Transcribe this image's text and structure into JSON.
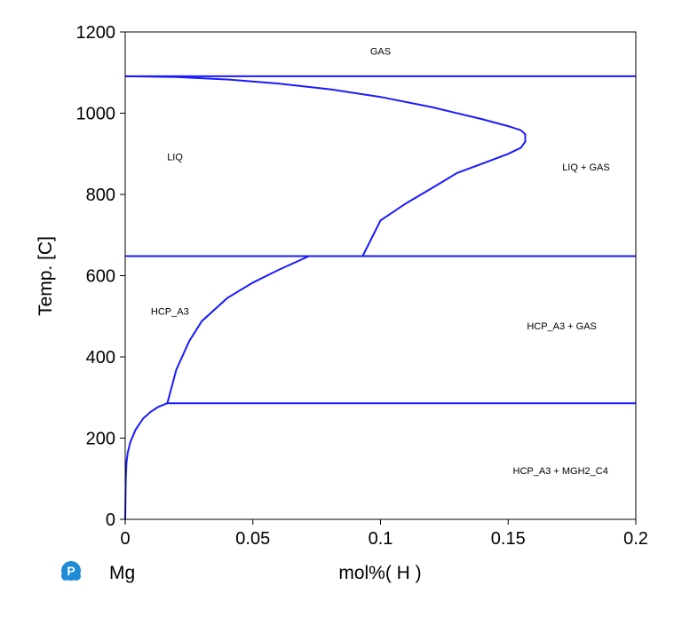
{
  "chart_data": {
    "type": "line",
    "title": "",
    "xlabel": "mol%( H )",
    "ylabel": "Temp. [C]",
    "xlim": [
      0,
      0.2
    ],
    "ylim": [
      0,
      1200
    ],
    "xticks": [
      "0",
      "0.05",
      "0.1",
      "0.15",
      "0.2"
    ],
    "yticks": [
      "0",
      "200",
      "400",
      "600",
      "800",
      "1000",
      "1200"
    ],
    "grid": false,
    "line_color": "#1a1aff",
    "component_label": "Mg",
    "regions": [
      {
        "label": "GAS",
        "x": 0.1,
        "y": 1153
      },
      {
        "label": "LIQ",
        "x": 0.0195,
        "y": 893
      },
      {
        "label": "LIQ + GAS",
        "x": 0.1805,
        "y": 868
      },
      {
        "label": "HCP_A3",
        "x": 0.0175,
        "y": 513
      },
      {
        "label": "HCP_A3 + GAS",
        "x": 0.171,
        "y": 476
      },
      {
        "label": "HCP_A3 + MGH2_C4",
        "x": 0.1705,
        "y": 120
      }
    ],
    "series": [
      {
        "points": [
          [
            0,
            1091
          ],
          [
            0.2,
            1091
          ]
        ]
      },
      {
        "points": [
          [
            0,
            648
          ],
          [
            0.2,
            648
          ]
        ]
      },
      {
        "points": [
          [
            0.0165,
            286
          ],
          [
            0.2,
            286
          ]
        ]
      },
      {
        "points": [
          [
            0,
            1091
          ],
          [
            0.02,
            1089
          ],
          [
            0.04,
            1083
          ],
          [
            0.06,
            1073
          ],
          [
            0.08,
            1059
          ],
          [
            0.1,
            1040
          ],
          [
            0.12,
            1015
          ],
          [
            0.14,
            985
          ],
          [
            0.15,
            968
          ],
          [
            0.155,
            958
          ],
          [
            0.1567,
            948
          ],
          [
            0.1567,
            930
          ],
          [
            0.155,
            915
          ],
          [
            0.15,
            900
          ],
          [
            0.14,
            876
          ],
          [
            0.13,
            853
          ],
          [
            0.12,
            815
          ],
          [
            0.11,
            778
          ],
          [
            0.1,
            736
          ],
          [
            0.093,
            648
          ]
        ]
      },
      {
        "points": [
          [
            0.072,
            648
          ],
          [
            0.06,
            614
          ],
          [
            0.05,
            583
          ],
          [
            0.04,
            545
          ],
          [
            0.03,
            488
          ],
          [
            0.025,
            438
          ],
          [
            0.02,
            368
          ],
          [
            0.0165,
            286
          ]
        ]
      },
      {
        "points": [
          [
            0,
            0
          ],
          [
            0.0002,
            95
          ],
          [
            0.0005,
            140
          ],
          [
            0.001,
            165
          ],
          [
            0.002,
            190
          ],
          [
            0.004,
            220
          ],
          [
            0.007,
            248
          ],
          [
            0.01,
            265
          ],
          [
            0.013,
            277
          ],
          [
            0.0165,
            286
          ]
        ]
      }
    ]
  }
}
